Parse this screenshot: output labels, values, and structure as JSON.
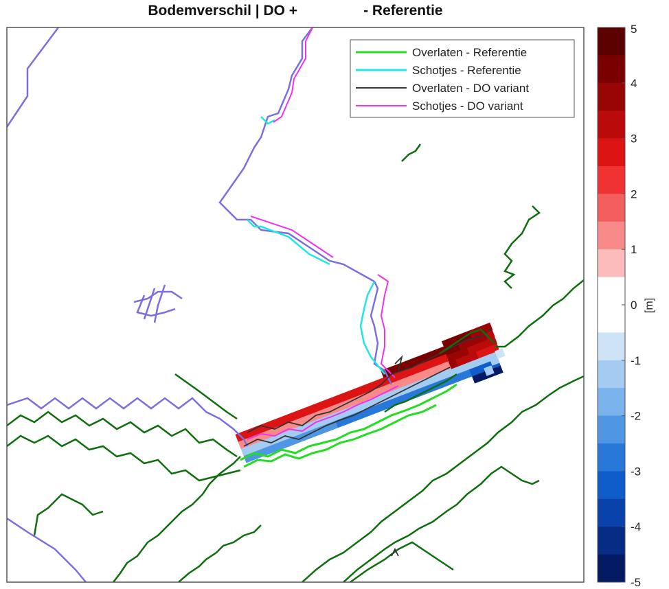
{
  "chart_data": {
    "type": "heatmap",
    "title_left": "Bodemverschil | DO +",
    "title_right": "- Referentie",
    "legend": {
      "placement": "top-right",
      "entries": [
        {
          "label": "Overlaten - Referentie",
          "color": "#22dd22",
          "width": 3
        },
        {
          "label": "Schotjes - Referentie",
          "color": "#22e5e5",
          "width": 3
        },
        {
          "label": "Overlaten - DO variant",
          "color": "#333333",
          "width": 2
        },
        {
          "label": "Schotjes - DO variant",
          "color": "#ee33ee",
          "width": 2
        }
      ]
    },
    "colorbar": {
      "unit": "[m]",
      "min": -5,
      "max": 5,
      "ticks": [
        5,
        4,
        3,
        2,
        1,
        0,
        -1,
        -2,
        -3,
        -4,
        -5
      ],
      "tick_labels": [
        "5",
        "4",
        "3",
        "2",
        "1",
        "0",
        "-1",
        "-2",
        "-3",
        "-4",
        "-5"
      ],
      "levels": [
        {
          "from": 4.5,
          "to": 5.0,
          "color": "#5c0000"
        },
        {
          "from": 4.0,
          "to": 4.5,
          "color": "#7a0000"
        },
        {
          "from": 3.5,
          "to": 4.0,
          "color": "#990505"
        },
        {
          "from": 3.0,
          "to": 3.5,
          "color": "#bb0a0a"
        },
        {
          "from": 2.5,
          "to": 3.0,
          "color": "#dd1414"
        },
        {
          "from": 2.0,
          "to": 2.5,
          "color": "#f03232"
        },
        {
          "from": 1.5,
          "to": 2.0,
          "color": "#f55e5e"
        },
        {
          "from": 1.0,
          "to": 1.5,
          "color": "#f98a8a"
        },
        {
          "from": 0.5,
          "to": 1.0,
          "color": "#fcbcbc"
        },
        {
          "from": 0.0,
          "to": 0.5,
          "color": "#ffffff"
        },
        {
          "from": -0.5,
          "to": 0.0,
          "color": "#ffffff"
        },
        {
          "from": -1.0,
          "to": -0.5,
          "color": "#cfe3f7"
        },
        {
          "from": -1.5,
          "to": -1.0,
          "color": "#a4cbf2"
        },
        {
          "from": -2.0,
          "to": -1.5,
          "color": "#7ab2ec"
        },
        {
          "from": -2.5,
          "to": -2.0,
          "color": "#4f96e4"
        },
        {
          "from": -3.0,
          "to": -2.5,
          "color": "#2878da"
        },
        {
          "from": -3.5,
          "to": -3.0,
          "color": "#0f5ccb"
        },
        {
          "from": -4.0,
          "to": -3.5,
          "color": "#0842aa"
        },
        {
          "from": -4.5,
          "to": -4.0,
          "color": "#062c86"
        },
        {
          "from": -5.0,
          "to": -4.5,
          "color": "#041a63"
        }
      ]
    },
    "grid": false,
    "axes_ticks": false
  }
}
